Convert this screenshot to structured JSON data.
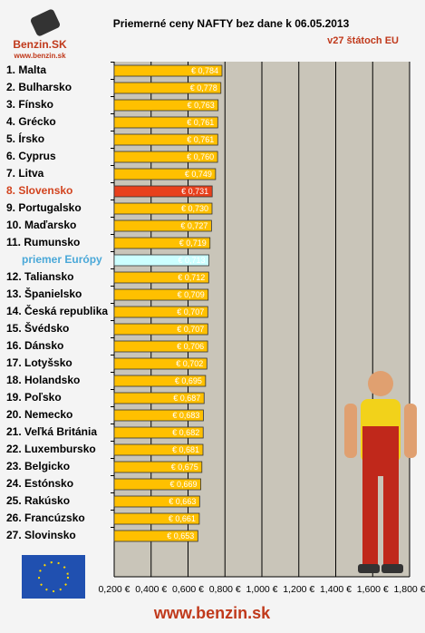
{
  "logo_name": "Benzin.SK",
  "logo_url": "www.benzin.sk",
  "footer": "www.benzin.sk",
  "chart_data": {
    "type": "bar",
    "orientation": "horizontal",
    "title": "Priemerné ceny NAFTY bez dane k 06.05.2013",
    "subtitle": "v27 štátoch EU",
    "categories": [
      "1. Malta",
      "2. Bulharsko",
      "3. Fínsko",
      "4. Grécko",
      "5. Írsko",
      "6. Cyprus",
      "7. Litva",
      "8. Slovensko",
      "9. Portugalsko",
      "10. Maďarsko",
      "11. Rumunsko",
      "priemer Európy",
      "12. Taliansko",
      "13. Španielsko",
      "14. Česká republika",
      "15. Švédsko",
      "16. Dánsko",
      "17. Lotyšsko",
      "18. Holandsko",
      "19. Poľsko",
      "20. Nemecko",
      "21. Veľká Británia",
      "22. Luxembursko",
      "23. Belgicko",
      "24. Estónsko",
      "25. Rakúsko",
      "26. Francúzsko",
      "27. Slovinsko"
    ],
    "values": [
      0.784,
      0.778,
      0.763,
      0.761,
      0.761,
      0.76,
      0.749,
      0.731,
      0.73,
      0.727,
      0.719,
      0.713,
      0.712,
      0.709,
      0.707,
      0.707,
      0.706,
      0.702,
      0.695,
      0.687,
      0.683,
      0.682,
      0.681,
      0.675,
      0.669,
      0.663,
      0.661,
      0.653
    ],
    "value_labels": [
      "€ 0,784",
      "€ 0,778",
      "€ 0,763",
      "€ 0,761",
      "€ 0,761",
      "€ 0,760",
      "€ 0,749",
      "€ 0,731",
      "€ 0,730",
      "€ 0,727",
      "€ 0,719",
      "€ 0,713",
      "€ 0,712",
      "€ 0,709",
      "€ 0,707",
      "€ 0,707",
      "€ 0,706",
      "€ 0,702",
      "€ 0,695",
      "€ 0,687",
      "€ 0,683",
      "€ 0,682",
      "€ 0,681",
      "€ 0,675",
      "€ 0,669",
      "€ 0,663",
      "€ 0,661",
      "€ 0,653"
    ],
    "color": "#ffc000",
    "colors": [
      "#ffc000",
      "#ffc000",
      "#ffc000",
      "#ffc000",
      "#ffc000",
      "#ffc000",
      "#ffc000",
      "#e8401c",
      "#ffc000",
      "#ffc000",
      "#ffc000",
      "#ccffff",
      "#ffc000",
      "#ffc000",
      "#ffc000",
      "#ffc000",
      "#ffc000",
      "#ffc000",
      "#ffc000",
      "#ffc000",
      "#ffc000",
      "#ffc000",
      "#ffc000",
      "#ffc000",
      "#ffc000",
      "#ffc000",
      "#ffc000",
      "#ffc000"
    ],
    "xlim": [
      0.2,
      1.8
    ],
    "xticks": [
      {
        "value": 0.2,
        "label": "0,200 €"
      },
      {
        "value": 0.4,
        "label": "0,400 €"
      },
      {
        "value": 0.6,
        "label": "0,600 €"
      },
      {
        "value": 0.8,
        "label": "0,800 €"
      },
      {
        "value": 1.0,
        "label": "1,000 €"
      },
      {
        "value": 1.2,
        "label": "1,200 €"
      },
      {
        "value": 1.4,
        "label": "1,400 €"
      },
      {
        "value": 1.6,
        "label": "1,600 €"
      },
      {
        "value": 1.8,
        "label": "1,800 €"
      }
    ],
    "grid": true
  }
}
